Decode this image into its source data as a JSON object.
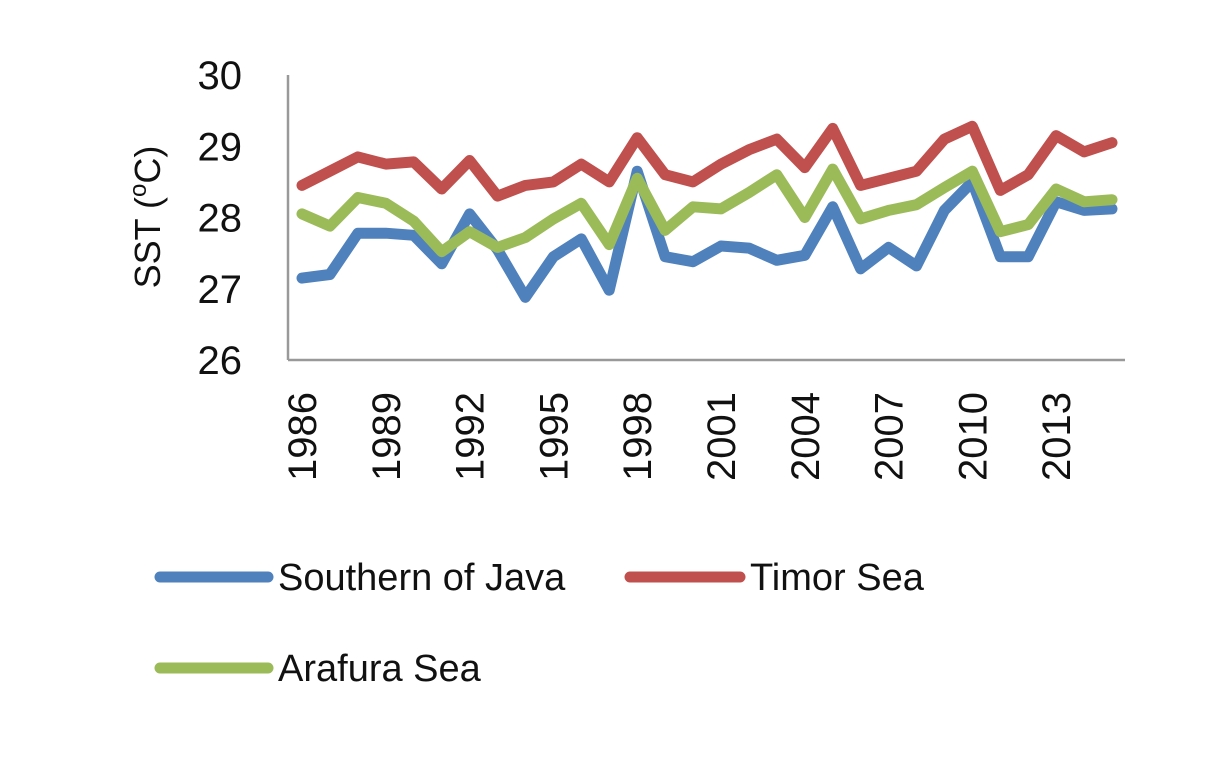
{
  "chart_data": {
    "type": "line",
    "title": "",
    "xlabel": "",
    "ylabel": "SST (",
    "ylabel_sup": "o",
    "ylabel_tail": "C)",
    "ylim": [
      26,
      30
    ],
    "yticks": [
      "26",
      "27",
      "28",
      "29",
      "30"
    ],
    "x": [
      1986,
      1987,
      1988,
      1989,
      1990,
      1991,
      1992,
      1993,
      1994,
      1995,
      1996,
      1997,
      1998,
      1999,
      2000,
      2001,
      2002,
      2003,
      2004,
      2005,
      2006,
      2007,
      2008,
      2009,
      2010,
      2011,
      2012,
      2013,
      2014,
      2015
    ],
    "xticks": [
      "1986",
      "1989",
      "1992",
      "1995",
      "1998",
      "2001",
      "2004",
      "2007",
      "2010",
      "2013"
    ],
    "grid": false,
    "legend_position": "bottom",
    "series": [
      {
        "name": "Southern of Java",
        "color": "#4f81bd",
        "values": [
          27.15,
          27.2,
          27.78,
          27.78,
          27.75,
          27.35,
          28.05,
          27.55,
          26.88,
          27.45,
          27.7,
          26.98,
          28.65,
          27.45,
          27.38,
          27.6,
          27.57,
          27.4,
          27.47,
          28.15,
          27.28,
          27.58,
          27.32,
          28.1,
          28.5,
          27.45,
          27.45,
          28.22,
          28.1,
          28.12
        ]
      },
      {
        "name": "Timor Sea",
        "color": "#c0504d",
        "values": [
          28.45,
          28.65,
          28.85,
          28.75,
          28.78,
          28.4,
          28.8,
          28.3,
          28.45,
          28.5,
          28.75,
          28.5,
          29.12,
          28.6,
          28.5,
          28.75,
          28.95,
          29.1,
          28.7,
          29.25,
          28.45,
          28.55,
          28.65,
          29.1,
          29.28,
          28.38,
          28.6,
          29.15,
          28.92,
          29.05
        ]
      },
      {
        "name": "Arafura Sea",
        "color": "#9bbb59",
        "values": [
          28.05,
          27.88,
          28.28,
          28.2,
          27.95,
          27.52,
          27.8,
          27.58,
          27.72,
          27.98,
          28.2,
          27.62,
          28.55,
          27.82,
          28.15,
          28.12,
          28.35,
          28.6,
          28.0,
          28.68,
          27.98,
          28.1,
          28.18,
          28.42,
          28.65,
          27.8,
          27.9,
          28.4,
          28.22,
          28.25
        ]
      }
    ]
  }
}
